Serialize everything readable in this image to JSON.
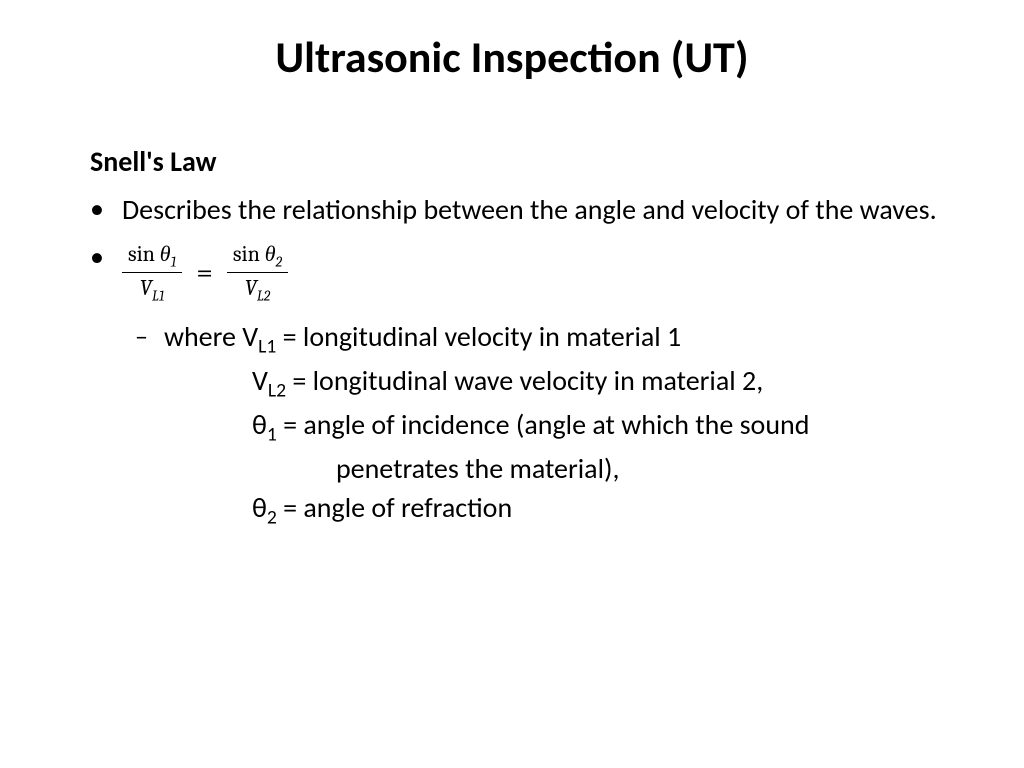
{
  "title": "Ultrasonic Inspection (UT)",
  "subtitle": "Snell's Law",
  "bullet1": "Describes the relationship between the angle and velocity of the waves.",
  "formula": {
    "num1_a": "sin",
    "num1_b": "θ",
    "num1_sub": "1",
    "den1_a": "V",
    "den1_sub": "L1",
    "eq": "=",
    "num2_a": "sin",
    "num2_b": "θ",
    "num2_sub": "2",
    "den2_a": "V",
    "den2_sub": "L2"
  },
  "defs": {
    "where": "where ",
    "vl1_sym": "V",
    "vl1_sub": "L1",
    "vl1_txt": " = longitudinal velocity in material 1",
    "vl2_sym": "V",
    "vl2_sub": "L2",
    "vl2_txt": " = longitudinal wave velocity in material 2,",
    "th1_sym": "θ",
    "th1_sub": "1",
    "th1_txt": " = angle of incidence (angle at which the sound",
    "th1_cont": "penetrates the material),",
    "th2_sym": "θ",
    "th2_sub": "2",
    "th2_txt": " = angle of refraction"
  },
  "colors": {
    "background": "#ffffff",
    "text": "#000000"
  },
  "typography": {
    "title_size_pt": 40,
    "body_size_pt": 28,
    "family": "Calibri"
  }
}
